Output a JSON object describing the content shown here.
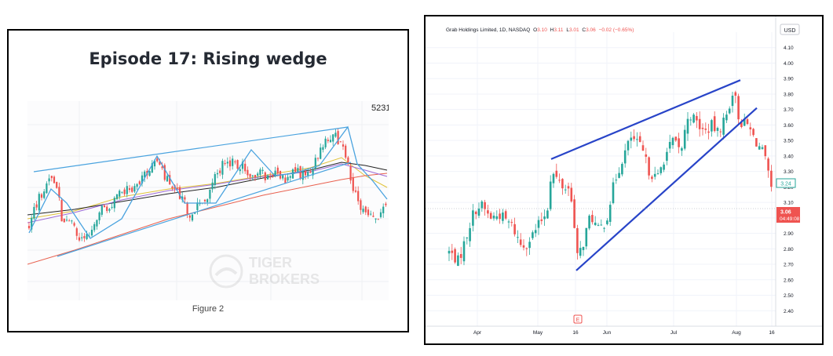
{
  "left_panel": {
    "title": "Episode 17: Rising wedge",
    "price_tag": "5231",
    "watermark_line1": "TIGER",
    "watermark_line2": "BROKERS",
    "caption": "Figure 2"
  },
  "right_panel": {
    "symbol_line": "Grab Holdings Limited, 1D, NASDAQ",
    "ohlc": [
      {
        "label": "O",
        "value": "3.10"
      },
      {
        "label": "H",
        "value": "3.11"
      },
      {
        "label": "L",
        "value": "3.01"
      },
      {
        "label": "C",
        "value": "3.06"
      }
    ],
    "change": "−0.02 (−0.65%)",
    "currency": "USD",
    "price_label": "3.06",
    "countdown": "04:49:08",
    "marker_label": "E"
  },
  "colors": {
    "up": "#26a69a",
    "down": "#ef5350",
    "trendline": "#2844c8",
    "left_trendline": "#4aa3df",
    "title": "#252a33"
  },
  "chart_data": [
    {
      "type": "candlestick",
      "title": "Episode 17: Rising wedge",
      "ylabel": "",
      "last_price_tag": "5231",
      "series_count": 160
    },
    {
      "type": "candlestick",
      "title": "",
      "xlabel": "",
      "ylabel": "USD",
      "ylim": [
        2.3,
        4.2
      ],
      "y_ticks": [
        "2.40",
        "2.50",
        "2.60",
        "2.70",
        "2.80",
        "2.90",
        "3.00",
        "3.10",
        "3.20",
        "3.30",
        "3.40",
        "3.50",
        "3.60",
        "3.70",
        "3.80",
        "3.90",
        "4.00",
        "4.10"
      ],
      "x_ticks": [
        "Apr",
        "May",
        "16",
        "Jun",
        "Jul",
        "Aug",
        "16"
      ],
      "value_labels": {
        "last_close": "3.06",
        "ma_value": "3.24"
      },
      "trendlines": [
        {
          "name": "upper",
          "from": [
            "2022-05-09",
            3.38
          ],
          "to": [
            "2022-08-01",
            3.89
          ]
        },
        {
          "name": "lower",
          "from": [
            "2022-05-16",
            2.66
          ],
          "to": [
            "2022-08-03",
            3.71
          ]
        }
      ],
      "grid": true
    }
  ]
}
